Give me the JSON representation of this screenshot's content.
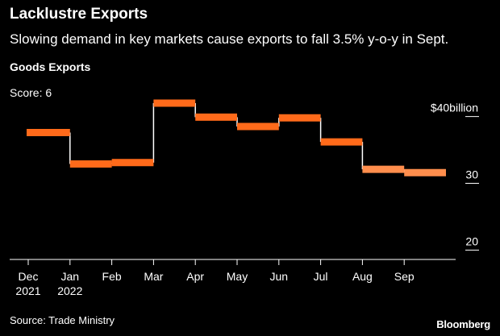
{
  "header": {
    "title": "Lacklustre Exports",
    "subtitle": "Slowing demand in key markets cause exports to fall 3.5% y-o-y in Sept."
  },
  "panel": {
    "title": "Goods Exports",
    "score": "Score: 6"
  },
  "footer": {
    "source": "Source: Trade Ministry",
    "brand": "Bloomberg"
  },
  "colors": {
    "background": "#000000",
    "step": "#ff6a1a",
    "step_recent": "#ff8e4d",
    "connector": "#ffffff",
    "axis": "#ffffff"
  },
  "chart_data": {
    "type": "line",
    "style": "step",
    "title": "Goods Exports",
    "xlabel": "",
    "ylabel": "",
    "y_unit_label": "$40billion",
    "ylim": [
      18.6,
      42
    ],
    "y_ticks": [
      {
        "value": 40,
        "label": "$40billion"
      },
      {
        "value": 30,
        "label": "30"
      },
      {
        "value": 20,
        "label": "20"
      }
    ],
    "x_ticks": [
      {
        "label": "Dec",
        "sublabel": "2021"
      },
      {
        "label": "Jan",
        "sublabel": "2022"
      },
      {
        "label": "Feb",
        "sublabel": ""
      },
      {
        "label": "Mar",
        "sublabel": ""
      },
      {
        "label": "Apr",
        "sublabel": ""
      },
      {
        "label": "May",
        "sublabel": ""
      },
      {
        "label": "Jun",
        "sublabel": ""
      },
      {
        "label": "Jul",
        "sublabel": ""
      },
      {
        "label": "Aug",
        "sublabel": ""
      },
      {
        "label": "Sep",
        "sublabel": ""
      }
    ],
    "categories": [
      "Dec 2021",
      "Jan 2022",
      "Feb",
      "Mar",
      "Apr",
      "May",
      "Jun",
      "Jul",
      "Aug",
      "Sep"
    ],
    "series": [
      {
        "name": "Goods Exports",
        "values": [
          37.6,
          32.9,
          33.1,
          42.0,
          39.9,
          38.5,
          39.8,
          36.2,
          32.1,
          31.6
        ],
        "highlight_from_index": 8
      }
    ]
  }
}
